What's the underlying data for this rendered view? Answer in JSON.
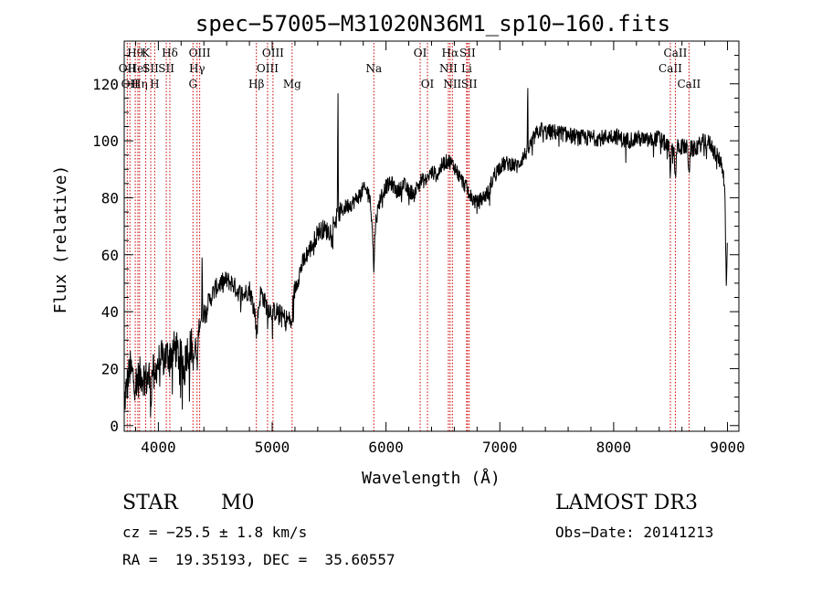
{
  "chart_data": {
    "type": "line",
    "title": "spec−57005−M31020N36M1_sp10−160.fits",
    "xlabel": "Wavelength (Å)",
    "ylabel": "Flux (relative)",
    "xlim": [
      3700,
      9100
    ],
    "ylim": [
      -2,
      135
    ],
    "xticks": [
      4000,
      5000,
      6000,
      7000,
      8000,
      9000
    ],
    "yticks": [
      0,
      20,
      40,
      60,
      80,
      100,
      120
    ],
    "spectrum_anchors": {
      "x": [
        3700,
        3750,
        3800,
        3850,
        3900,
        3950,
        4000,
        4050,
        4100,
        4150,
        4200,
        4250,
        4300,
        4340,
        4360,
        4400,
        4450,
        4500,
        4550,
        4600,
        4650,
        4700,
        4750,
        4800,
        4850,
        4870,
        4900,
        4950,
        5000,
        5050,
        5100,
        5150,
        5200,
        5250,
        5300,
        5350,
        5400,
        5450,
        5500,
        5550,
        5600,
        5650,
        5700,
        5750,
        5800,
        5850,
        5890,
        5950,
        6000,
        6050,
        6100,
        6150,
        6200,
        6250,
        6300,
        6350,
        6400,
        6450,
        6500,
        6550,
        6600,
        6650,
        6700,
        6750,
        6800,
        6850,
        6900,
        6950,
        7000,
        7050,
        7100,
        7150,
        7200,
        7250,
        7300,
        7350,
        7400,
        7500,
        7600,
        7700,
        7800,
        7900,
        8000,
        8100,
        8200,
        8300,
        8400,
        8500,
        8600,
        8700,
        8800,
        8850,
        8900,
        8950,
        9000
      ],
      "y": [
        8,
        20,
        15,
        18,
        16,
        20,
        22,
        24,
        25,
        27,
        23,
        26,
        28,
        30,
        36,
        40,
        44,
        48,
        50,
        51,
        50,
        47,
        46,
        48,
        40,
        38,
        47,
        42,
        40,
        40,
        38,
        37,
        48,
        55,
        60,
        63,
        68,
        69,
        68,
        72,
        75,
        77,
        78,
        80,
        83,
        82,
        68,
        80,
        84,
        85,
        82,
        85,
        82,
        82,
        86,
        86,
        89,
        88,
        92,
        93,
        91,
        87,
        84,
        80,
        78,
        80,
        82,
        88,
        91,
        92,
        92,
        91,
        94,
        97,
        101,
        104,
        103,
        103,
        102,
        101,
        101,
        101,
        102,
        100,
        101,
        100,
        101,
        97,
        98,
        97,
        100,
        99,
        95,
        92,
        78
      ]
    },
    "spectrum_features": [
      {
        "x": 3933,
        "depth": -10
      },
      {
        "x": 3968,
        "depth": -8
      },
      {
        "x": 4227,
        "depth": -7
      },
      {
        "x": 4310,
        "depth": -8
      },
      {
        "x": 4340,
        "depth": -10
      },
      {
        "x": 4385,
        "height": 22
      },
      {
        "x": 4861,
        "depth": -7
      },
      {
        "x": 5170,
        "depth": -8
      },
      {
        "x": 5577,
        "height": 50
      },
      {
        "x": 5893,
        "depth": -14
      },
      {
        "x": 7245,
        "height": 24
      },
      {
        "x": 8498,
        "depth": -8
      },
      {
        "x": 8542,
        "depth": -10
      },
      {
        "x": 8662,
        "depth": -8
      },
      {
        "x": 8990,
        "depth": -35
      }
    ],
    "line_markers": [
      {
        "x": 3727,
        "row": 1,
        "label": "OII"
      },
      {
        "x": 3750,
        "row": 2,
        "label": "OII"
      },
      {
        "x": 3797,
        "row": 0,
        "label": "Hθ"
      },
      {
        "x": 3820,
        "row": 1,
        "label": "HeI"
      },
      {
        "x": 3835,
        "row": 2,
        "label": "Hη"
      },
      {
        "x": 3889,
        "row": 0,
        "label": "K"
      },
      {
        "x": 3933,
        "row": 1,
        "label": "SII"
      },
      {
        "x": 3968,
        "row": 2,
        "label": "H"
      },
      {
        "x": 4101,
        "row": 0,
        "label": "Hδ"
      },
      {
        "x": 4070,
        "row": 1,
        "label": "SII"
      },
      {
        "x": 4340,
        "row": 1,
        "label": "Hγ"
      },
      {
        "x": 4363,
        "row": 0,
        "label": "OIII"
      },
      {
        "x": 4304,
        "row": 2,
        "label": "G"
      },
      {
        "x": 4861,
        "row": 2,
        "label": "Hβ"
      },
      {
        "x": 4959,
        "row": 1,
        "label": "OIII"
      },
      {
        "x": 5007,
        "row": 0,
        "label": "OIII"
      },
      {
        "x": 5175,
        "row": 2,
        "label": "Mg"
      },
      {
        "x": 5893,
        "row": 1,
        "label": "Na"
      },
      {
        "x": 6300,
        "row": 0,
        "label": "OI"
      },
      {
        "x": 6364,
        "row": 2,
        "label": "OI"
      },
      {
        "x": 6548,
        "row": 1,
        "label": "NII"
      },
      {
        "x": 6563,
        "row": 0,
        "label": "Hα"
      },
      {
        "x": 6583,
        "row": 2,
        "label": "NII"
      },
      {
        "x": 6708,
        "row": 1,
        "label": "Li"
      },
      {
        "x": 6716,
        "row": 0,
        "label": "SII"
      },
      {
        "x": 6731,
        "row": 2,
        "label": "SII"
      },
      {
        "x": 8498,
        "row": 1,
        "label": "CaII"
      },
      {
        "x": 8542,
        "row": 0,
        "label": "CaII"
      },
      {
        "x": 8662,
        "row": 2,
        "label": "CaII"
      }
    ]
  },
  "info": {
    "class_label": "STAR",
    "subclass_label": "M0",
    "survey_label": "LAMOST DR3",
    "redshift_text": "cz = −25.5 ± 1.8 km/s",
    "obs_date_text": "Obs−Date: 20141213",
    "coords_text": "RA =  19.35193, DEC =  35.60557"
  },
  "colors": {
    "spectrum": "#000000",
    "marker_line": "#cc0000",
    "axes": "#000000"
  }
}
